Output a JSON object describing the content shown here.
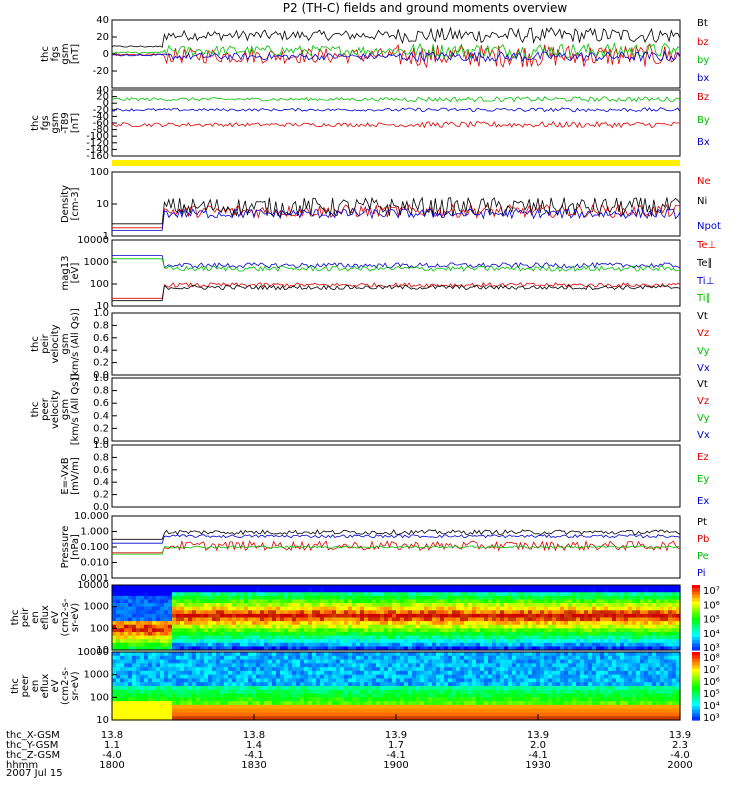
{
  "chart_data": {
    "type": "stacked-timeseries",
    "title": "P2 (TH-C) fields and ground moments overview",
    "date": "2007 Jul 15",
    "time_range_hhmm": [
      "1800",
      "2000"
    ],
    "panels": [
      {
        "id": "fgs",
        "ylabel": [
          "thc",
          "fgs",
          "gsm",
          "[nT]"
        ],
        "yticks": [
          "40",
          "20",
          "0",
          "-20"
        ],
        "ylim": [
          -40,
          40
        ],
        "series": [
          {
            "name": "Bt",
            "color": "#000000",
            "base": 22,
            "noise": 6
          },
          {
            "name": "bz",
            "color": "#e00000",
            "base": -2,
            "noise": 9
          },
          {
            "name": "by",
            "color": "#00c000",
            "base": 4,
            "noise": 6
          },
          {
            "name": "bx",
            "color": "#0000d0",
            "base": -3,
            "noise": 4
          }
        ]
      },
      {
        "id": "fgs_t89",
        "ylabel": [
          "thc",
          "fgs",
          "gsm",
          "-T89",
          "[nT]"
        ],
        "yticks": [
          "40",
          "20",
          "0",
          "-20",
          "-40",
          "-60",
          "-80",
          "-100",
          "-120",
          "-140",
          "-160"
        ],
        "ylim": [
          -160,
          40
        ],
        "series": [
          {
            "name": "Bz",
            "color": "#e00000",
            "base": -65,
            "noise": 6
          },
          {
            "name": "By",
            "color": "#00c000",
            "base": 12,
            "noise": 5
          },
          {
            "name": "Bx",
            "color": "#0000d0",
            "base": -20,
            "noise": 4
          }
        ]
      },
      {
        "id": "density",
        "ylabel": [
          "Density",
          "[cm-3]"
        ],
        "yticks": [
          "100",
          "10",
          "1"
        ],
        "ylim": [
          1,
          100
        ],
        "scale": "log",
        "series": [
          {
            "name": "Ne",
            "color": "#e00000",
            "base": 6,
            "noise": 0.2
          },
          {
            "name": "Ni",
            "color": "#000000",
            "base": 8,
            "noise": 0.3
          },
          {
            "name": "Npot",
            "color": "#0000d0",
            "base": 5,
            "noise": 0.15
          }
        ]
      },
      {
        "id": "temperature",
        "ylabel": [
          "mag13",
          "[eV]"
        ],
        "yticks": [
          "10000",
          "1000",
          "100",
          "10"
        ],
        "ylim": [
          10,
          10000
        ],
        "scale": "log",
        "series": [
          {
            "name": "Te⊥",
            "color": "#e00000",
            "base": 90,
            "noise": 0.1
          },
          {
            "name": "Te∥",
            "color": "#000000",
            "base": 70,
            "noise": 0.1
          },
          {
            "name": "Ti⊥",
            "color": "#0000d0",
            "base": 700,
            "noise": 0.12
          },
          {
            "name": "Ti∥",
            "color": "#00c000",
            "base": 500,
            "noise": 0.12
          }
        ]
      },
      {
        "id": "peir_velocity",
        "ylabel": [
          "thc",
          "peir",
          "velocity",
          "gsm",
          "[km/s (All Qs)]"
        ],
        "yticks": [
          "1.0",
          "0.8",
          "0.6",
          "0.4",
          "0.2",
          "0.0"
        ],
        "ylim": [
          0,
          1
        ],
        "empty": true,
        "series": [
          {
            "name": "Vt",
            "color": "#000000"
          },
          {
            "name": "Vz",
            "color": "#e00000"
          },
          {
            "name": "Vy",
            "color": "#00c000"
          },
          {
            "name": "Vx",
            "color": "#0000d0"
          }
        ]
      },
      {
        "id": "peer_velocity",
        "ylabel": [
          "thc",
          "peer",
          "velocity",
          "gsm",
          "[km/s (All Qs)]"
        ],
        "yticks": [
          "1.0",
          "0.8",
          "0.6",
          "0.4",
          "0.2",
          "0.0"
        ],
        "ylim": [
          0,
          1
        ],
        "empty": true,
        "series": [
          {
            "name": "Vt",
            "color": "#000000"
          },
          {
            "name": "Vz",
            "color": "#e00000"
          },
          {
            "name": "Vy",
            "color": "#00c000"
          },
          {
            "name": "Vx",
            "color": "#0000d0"
          }
        ]
      },
      {
        "id": "efield",
        "ylabel": [
          "E=-VxB",
          "[mV/m]"
        ],
        "yticks": [
          "1.0",
          "0.8",
          "0.6",
          "0.4",
          "0.2",
          "0.0"
        ],
        "ylim": [
          0,
          1
        ],
        "empty": true,
        "series": [
          {
            "name": "Ez",
            "color": "#e00000"
          },
          {
            "name": "Ey",
            "color": "#00c000"
          },
          {
            "name": "Ex",
            "color": "#0000d0"
          }
        ]
      },
      {
        "id": "pressure",
        "ylabel": [
          "Pressure",
          "[nPa]"
        ],
        "yticks": [
          "10.000",
          "1.000",
          "0.100",
          "0.010",
          "0.001"
        ],
        "ylim": [
          0.001,
          10
        ],
        "scale": "log",
        "series": [
          {
            "name": "Pt",
            "color": "#000000",
            "base": 0.9,
            "noise": 0.15
          },
          {
            "name": "Pb",
            "color": "#e00000",
            "base": 0.12,
            "noise": 0.3
          },
          {
            "name": "Pe",
            "color": "#00c000",
            "base": 0.1,
            "noise": 0.08
          },
          {
            "name": "Pi",
            "color": "#0000d0",
            "base": 0.5,
            "noise": 0.1
          }
        ]
      },
      {
        "id": "peir_eflux",
        "ylabel": [
          "thc",
          "peir",
          "en",
          "eflux",
          "eV",
          "(cm2-s-",
          "sr-eV)"
        ],
        "yticks": [
          "10000",
          "1000",
          "100",
          "10"
        ],
        "ylim": [
          10,
          10000
        ],
        "scale": "log",
        "spectrogram": "ion",
        "colorbar_ticks": [
          "10⁷",
          "10⁶",
          "10⁵",
          "10⁴",
          "10³"
        ]
      },
      {
        "id": "peer_eflux",
        "ylabel": [
          "thc",
          "peer",
          "en",
          "eflux",
          "eV",
          "(cm2-s-",
          "sr-eV)"
        ],
        "yticks": [
          "10000",
          "1000",
          "100",
          "10"
        ],
        "ylim": [
          10,
          10000
        ],
        "scale": "log",
        "spectrogram": "electron",
        "colorbar_ticks": [
          "10⁸",
          "10⁷",
          "10⁶",
          "10⁵",
          "10⁴",
          "10³"
        ]
      }
    ],
    "x_axis": {
      "rows": [
        {
          "label": "thc_X-GSM",
          "values": [
            "13.8",
            "13.8",
            "13.9",
            "13.9",
            "13.9"
          ]
        },
        {
          "label": "thc_Y-GSM",
          "values": [
            "1.1",
            "1.4",
            "1.7",
            "2.0",
            "2.3"
          ]
        },
        {
          "label": "thc_Z-GSM",
          "values": [
            "-4.0",
            "-4.1",
            "-4.1",
            "-4.1",
            "-4.0"
          ]
        },
        {
          "label": "hhmm",
          "values": [
            "1800",
            "1830",
            "1900",
            "1930",
            "2000"
          ]
        }
      ]
    }
  }
}
